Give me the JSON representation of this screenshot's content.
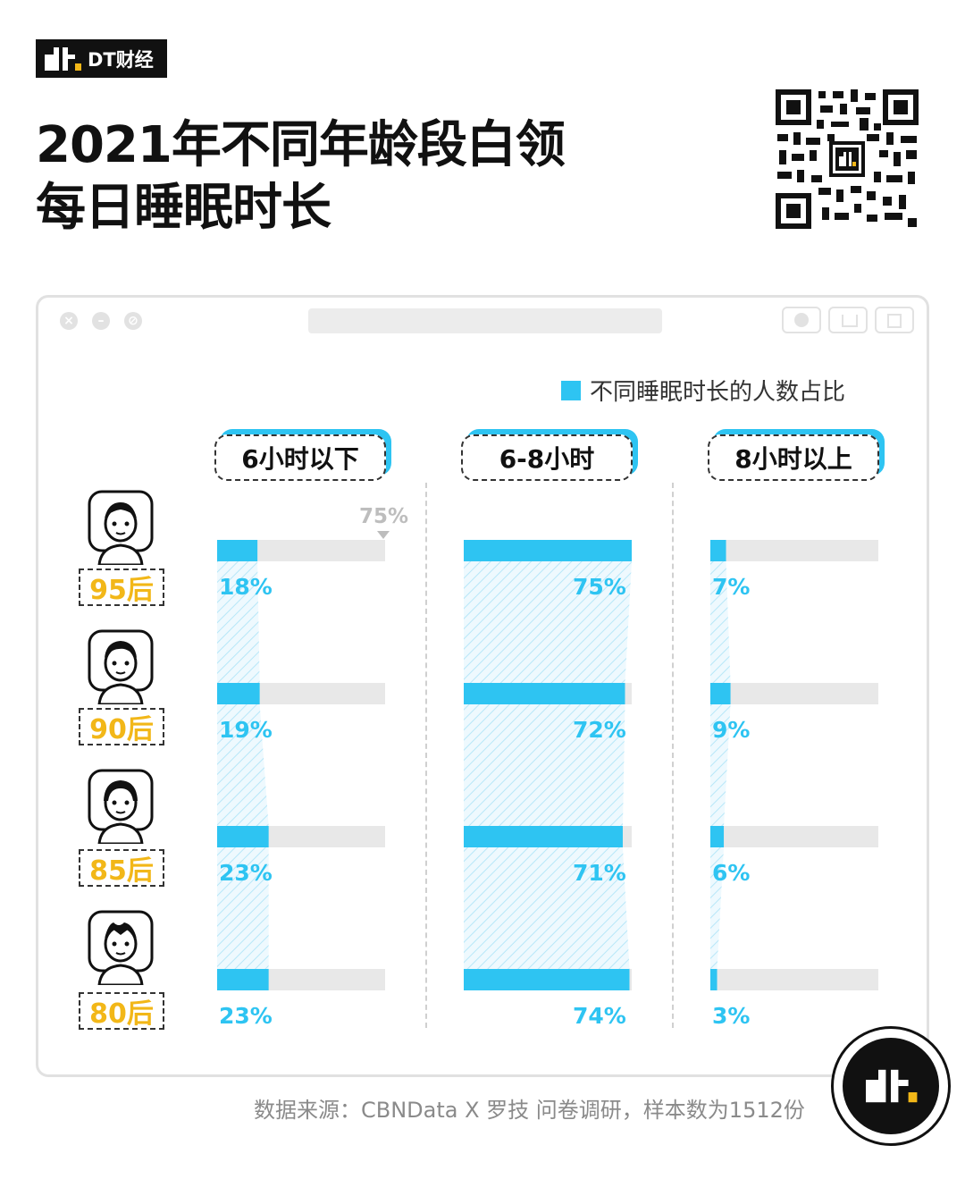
{
  "brand": {
    "name": "DT财经"
  },
  "title": {
    "line1": "2021年不同年龄段白领",
    "line2": "每日睡眠时长"
  },
  "legend": {
    "label": "不同睡眠时长的人数占比"
  },
  "reference_note": "75%",
  "colors": {
    "accent": "#2ec4f2",
    "age_label": "#f2b718",
    "track": "#e8e8e8"
  },
  "chart_data": {
    "type": "bar",
    "categories": [
      "95后",
      "90后",
      "85后",
      "80后"
    ],
    "series": [
      {
        "name": "6小时以下",
        "values": [
          18,
          19,
          23,
          23
        ],
        "labels": [
          "18%",
          "19%",
          "23%",
          "23%"
        ]
      },
      {
        "name": "6-8小时",
        "values": [
          75,
          72,
          71,
          74
        ],
        "labels": [
          "75%",
          "72%",
          "71%",
          "74%"
        ]
      },
      {
        "name": "8小时以上",
        "values": [
          7,
          9,
          6,
          3
        ],
        "labels": [
          "7%",
          "9%",
          "6%",
          "3%"
        ]
      }
    ],
    "legend": "不同睡眠时长的人数占比",
    "legend_position": "top-right",
    "bar_scale_max": 75
  },
  "source": "数据来源：CBNData X 罗技 问卷调研，样本数为1512份"
}
